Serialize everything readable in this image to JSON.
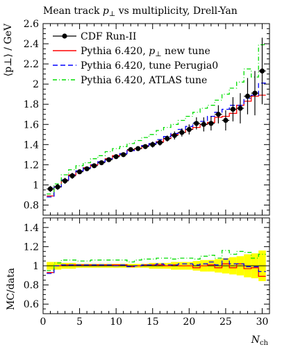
{
  "chart_data": {
    "type": "line",
    "title_parts": [
      "Mean track ",
      "p",
      "⊥",
      " vs multiplicity, Drell-Yan"
    ],
    "ylabel_main": "⟨p⊥⟩ / GeV",
    "ylabel_ratio": "MC/data",
    "xlabel": "N",
    "xlabel_sub": "ch",
    "xlim": [
      0,
      31
    ],
    "ylim_main": [
      0.7,
      2.6
    ],
    "ylim_ratio": [
      0.5,
      1.5
    ],
    "x_ticks": [
      "0",
      "5",
      "10",
      "15",
      "20",
      "25",
      "30"
    ],
    "y_ticks_main": [
      "0.8",
      "1",
      "1.2",
      "1.4",
      "1.6",
      "1.8",
      "2",
      "2.2",
      "2.4",
      "2.6"
    ],
    "y_ticks_ratio": [
      "0.6",
      "0.8",
      "1",
      "1.2",
      "1.4"
    ],
    "legend": {
      "position": "top-left",
      "entries": [
        {
          "key": "data",
          "parts": [
            "CDF Run-II",
            "",
            ""
          ]
        },
        {
          "key": "new_tune",
          "parts": [
            "Pythia 6.420, ",
            "p",
            "⊥"
          ],
          "suffix": " new tune"
        },
        {
          "key": "perugia0",
          "parts": [
            "Pythia 6.420, tune Perugia0",
            "",
            ""
          ]
        },
        {
          "key": "atlas",
          "parts": [
            "Pythia 6.420, ATLAS tune",
            "",
            ""
          ]
        }
      ]
    },
    "data_points": {
      "name": "CDF Run-II",
      "x": [
        1,
        2,
        3,
        4,
        5,
        6,
        7,
        8,
        9,
        10,
        11,
        12,
        13,
        14,
        15,
        16,
        17,
        18,
        19,
        20,
        21,
        22,
        23,
        24,
        25,
        26,
        27,
        28,
        29,
        30
      ],
      "y": [
        0.96,
        0.98,
        1.04,
        1.09,
        1.13,
        1.16,
        1.19,
        1.22,
        1.25,
        1.28,
        1.3,
        1.35,
        1.36,
        1.38,
        1.4,
        1.42,
        1.46,
        1.49,
        1.52,
        1.55,
        1.61,
        1.6,
        1.61,
        1.7,
        1.64,
        1.75,
        1.76,
        1.88,
        1.91,
        2.13
      ],
      "yerr": [
        0.03,
        0.03,
        0.03,
        0.03,
        0.02,
        0.02,
        0.02,
        0.02,
        0.02,
        0.02,
        0.02,
        0.02,
        0.02,
        0.02,
        0.03,
        0.03,
        0.03,
        0.04,
        0.04,
        0.05,
        0.06,
        0.07,
        0.07,
        0.09,
        0.1,
        0.12,
        0.15,
        0.18,
        0.22,
        0.33
      ]
    },
    "series": [
      {
        "key": "new_tune",
        "name": "Pythia 6.420, p⊥ new tune",
        "color": "#ff0000",
        "dash": "",
        "values": [
          0.89,
          0.98,
          1.05,
          1.1,
          1.14,
          1.17,
          1.2,
          1.23,
          1.26,
          1.29,
          1.31,
          1.34,
          1.36,
          1.39,
          1.41,
          1.43,
          1.46,
          1.5,
          1.52,
          1.55,
          1.57,
          1.6,
          1.62,
          1.67,
          1.68,
          1.71,
          1.79,
          1.83,
          1.88,
          1.89
        ],
        "ratio": [
          0.93,
          1.0,
          1.01,
          1.01,
          1.01,
          1.01,
          1.01,
          1.01,
          1.01,
          1.01,
          1.01,
          0.99,
          1.0,
          1.01,
          1.01,
          1.01,
          1.0,
          1.01,
          1.0,
          1.0,
          0.98,
          1.0,
          1.01,
          0.98,
          1.02,
          0.98,
          1.02,
          0.97,
          0.98,
          0.89
        ]
      },
      {
        "key": "perugia0",
        "name": "Pythia 6.420, tune Perugia0",
        "color": "#0000ff",
        "dash": "7,4",
        "values": [
          0.88,
          0.98,
          1.05,
          1.1,
          1.14,
          1.17,
          1.2,
          1.23,
          1.26,
          1.28,
          1.31,
          1.34,
          1.36,
          1.39,
          1.41,
          1.45,
          1.48,
          1.51,
          1.55,
          1.58,
          1.62,
          1.63,
          1.68,
          1.72,
          1.75,
          1.79,
          1.79,
          1.86,
          1.89,
          2.01
        ],
        "ratio": [
          0.92,
          1.0,
          1.01,
          1.01,
          1.01,
          1.01,
          1.01,
          1.01,
          1.01,
          1.0,
          1.01,
          0.99,
          1.0,
          1.01,
          1.01,
          1.02,
          1.01,
          1.01,
          1.02,
          1.02,
          1.01,
          1.02,
          1.04,
          1.01,
          1.07,
          1.02,
          1.02,
          0.99,
          0.99,
          0.94
        ]
      },
      {
        "key": "atlas",
        "name": "Pythia 6.420, ATLAS tune",
        "color": "#00dd00",
        "dash": "6,3,1,3",
        "values": [
          0.91,
          1.01,
          1.1,
          1.15,
          1.19,
          1.22,
          1.26,
          1.29,
          1.33,
          1.36,
          1.38,
          1.41,
          1.44,
          1.47,
          1.5,
          1.54,
          1.57,
          1.6,
          1.64,
          1.68,
          1.72,
          1.76,
          1.79,
          1.84,
          1.9,
          1.96,
          2.02,
          2.15,
          2.07,
          2.39
        ],
        "ratio": [
          0.95,
          1.03,
          1.06,
          1.06,
          1.05,
          1.05,
          1.06,
          1.06,
          1.06,
          1.06,
          1.06,
          1.04,
          1.06,
          1.07,
          1.07,
          1.08,
          1.08,
          1.07,
          1.08,
          1.08,
          1.07,
          1.1,
          1.11,
          1.08,
          1.16,
          1.12,
          1.15,
          1.14,
          1.08,
          1.12
        ]
      }
    ],
    "error_band_color": "#ffff00",
    "error_band_ratio": [
      0.04,
      0.04,
      0.03,
      0.03,
      0.02,
      0.02,
      0.02,
      0.02,
      0.02,
      0.02,
      0.02,
      0.02,
      0.02,
      0.02,
      0.03,
      0.03,
      0.03,
      0.04,
      0.04,
      0.04,
      0.05,
      0.06,
      0.06,
      0.07,
      0.08,
      0.09,
      0.1,
      0.12,
      0.13,
      0.16
    ]
  }
}
